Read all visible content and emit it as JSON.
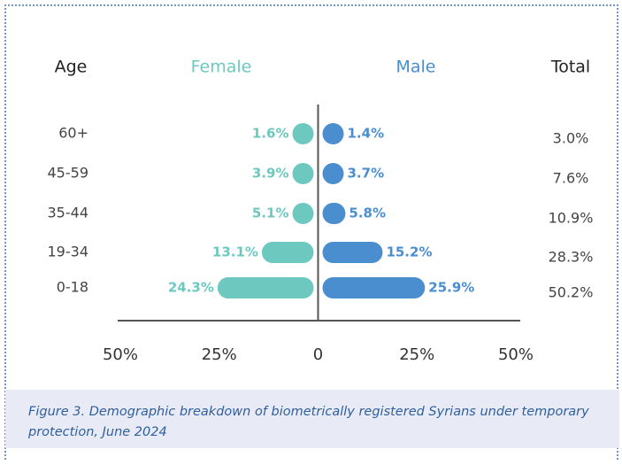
{
  "chart_data": {
    "type": "pyramid",
    "headers": {
      "category": "Age",
      "left": "Female",
      "right": "Male",
      "total": "Total"
    },
    "categories": [
      "60+",
      "45-59",
      "35-44",
      "19-34",
      "0-18"
    ],
    "series": [
      {
        "name": "Female",
        "color": "#6dc8c0",
        "side": "left",
        "values": [
          1.6,
          3.9,
          5.1,
          13.1,
          24.3
        ],
        "value_labels": [
          "1.6%",
          "3.9%",
          "5.1%",
          "13.1%",
          "24.3%"
        ]
      },
      {
        "name": "Male",
        "color": "#4b8ecf",
        "side": "right",
        "values": [
          1.4,
          3.7,
          5.8,
          15.2,
          25.9
        ],
        "value_labels": [
          "1.4%",
          "3.7%",
          "5.8%",
          "15.2%",
          "25.9%"
        ]
      }
    ],
    "totals": {
      "values": [
        3.0,
        7.6,
        10.9,
        28.3,
        50.2
      ],
      "value_labels": [
        "3.0%",
        "7.6%",
        "10.9%",
        "28.3%",
        "50.2%"
      ]
    },
    "xlim": [
      -50,
      50
    ],
    "xticks": [
      {
        "value": -50,
        "label": "50%"
      },
      {
        "value": -25,
        "label": "25%"
      },
      0,
      {
        "value": 25,
        "label": "25%"
      },
      {
        "value": 50,
        "label": "50%"
      }
    ],
    "caption": "Figure 3. Demographic breakdown of biometrically registered Syrians under temporary protection, June 2024"
  }
}
